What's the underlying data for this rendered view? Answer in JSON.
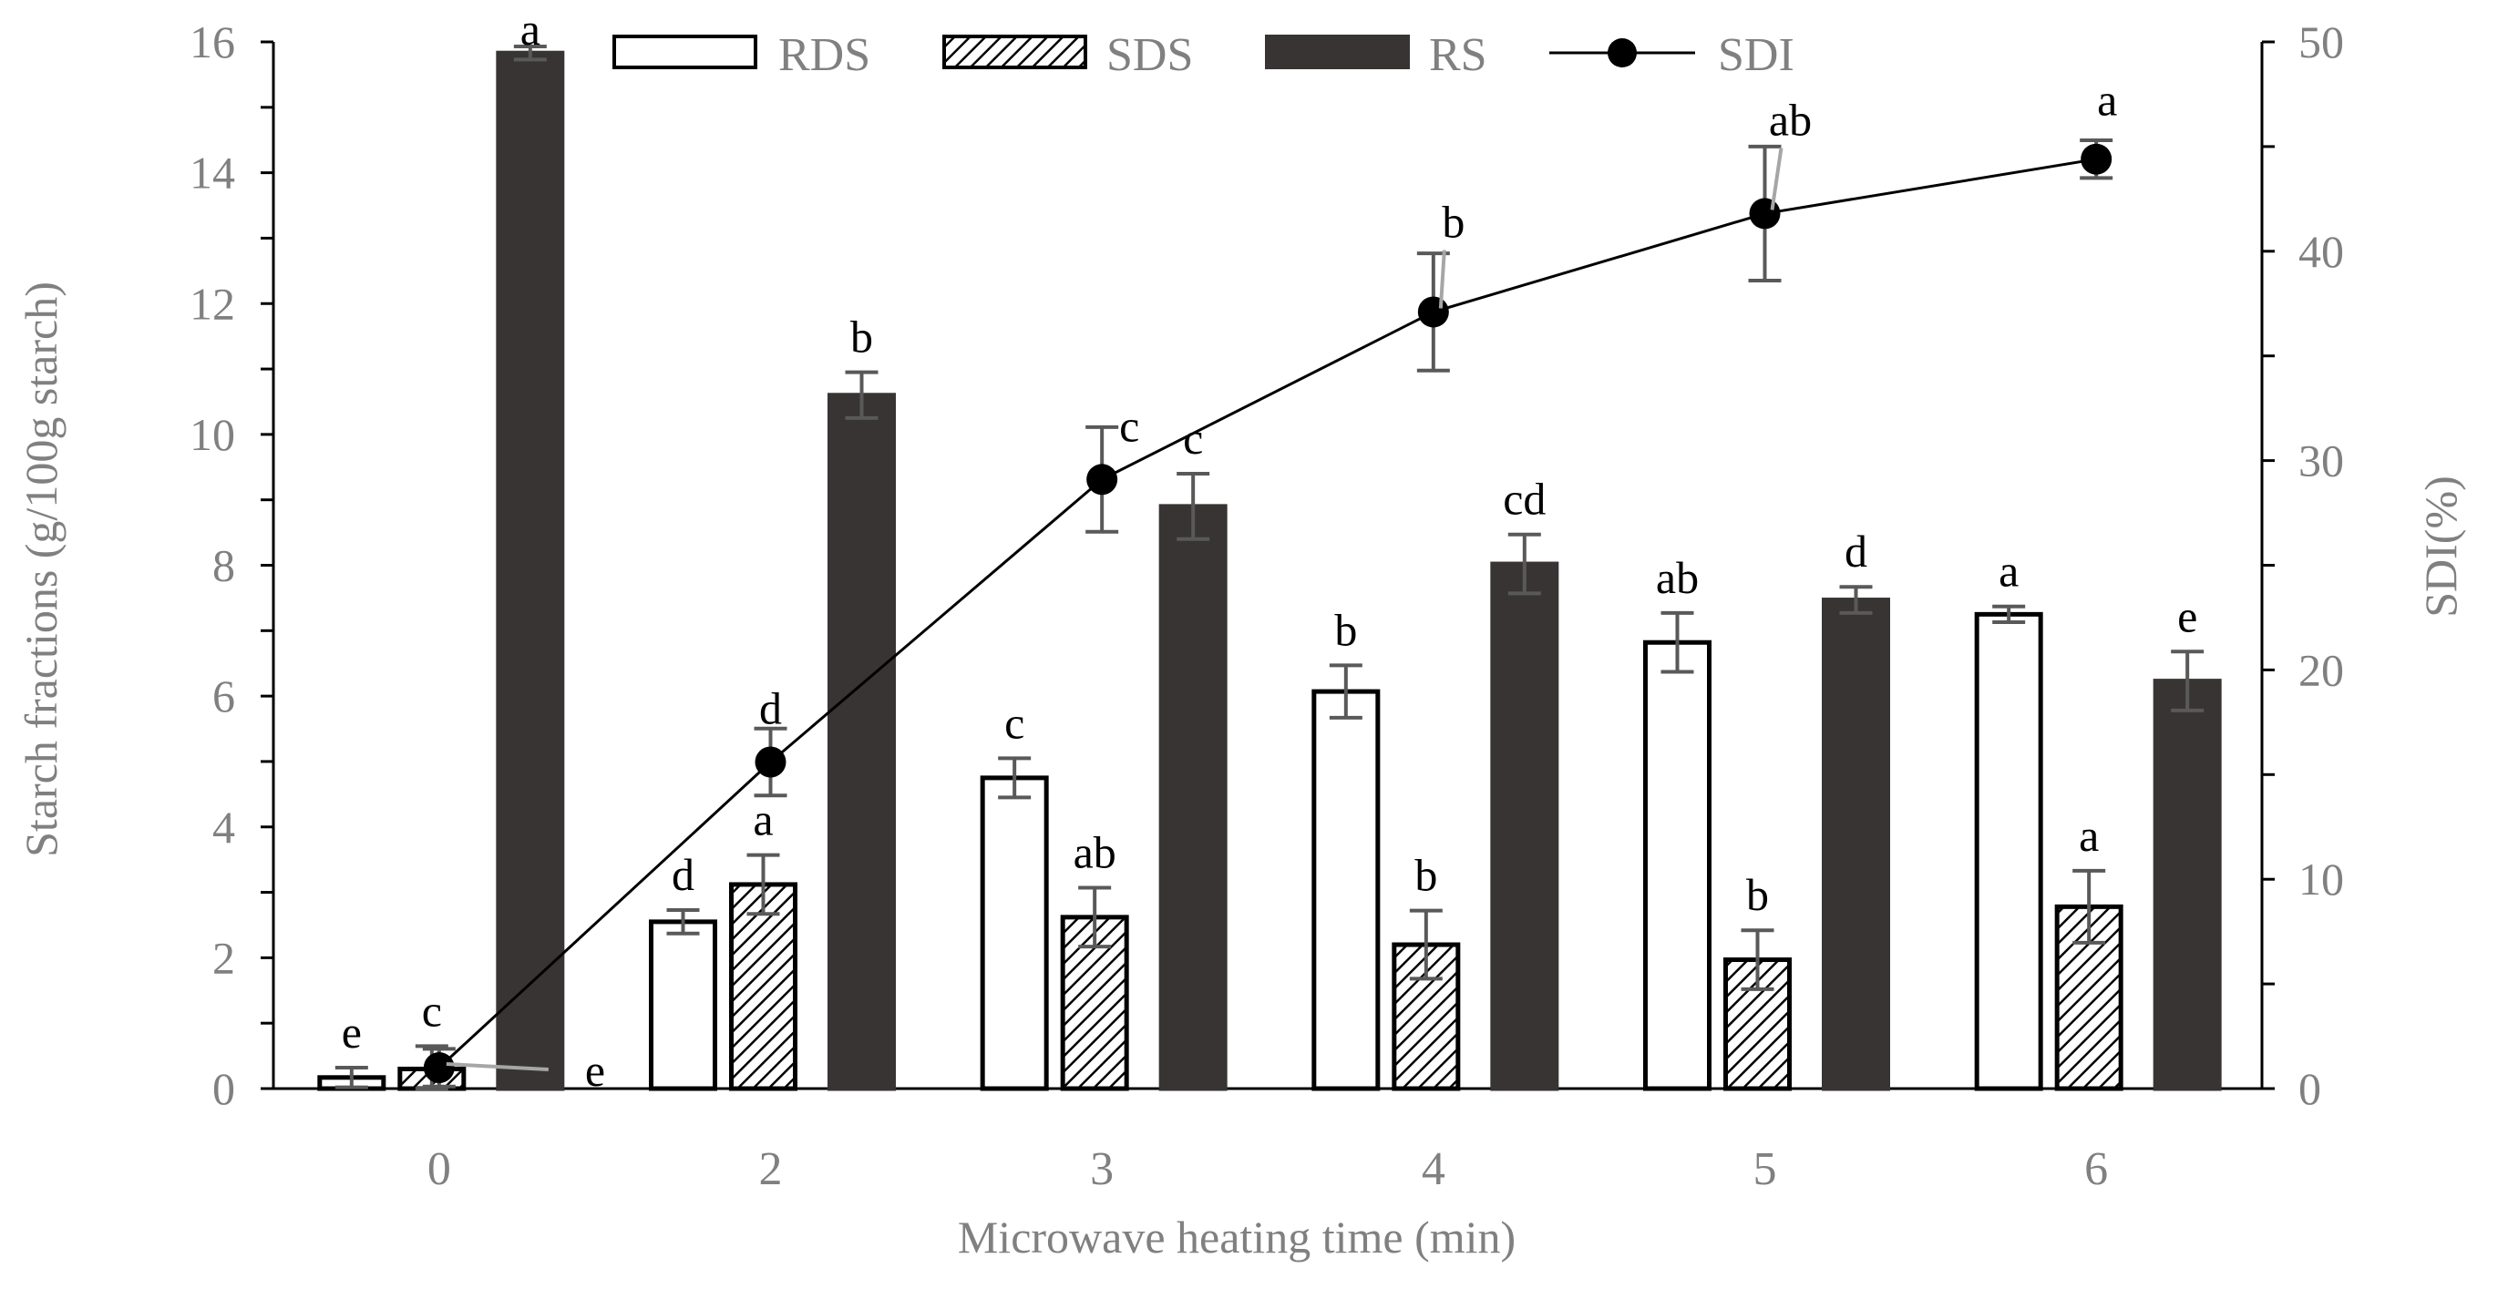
{
  "chart_data": {
    "type": "bar",
    "title": "",
    "xlabel": "Microwave heating time (min)",
    "ylabel": "Starch fractions (g/100g starch)",
    "y2label": "SDI(%)",
    "categories": [
      "0",
      "2",
      "3",
      "4",
      "5",
      "6"
    ],
    "ylim": [
      0,
      16
    ],
    "y2lim": [
      0,
      50
    ],
    "yticks": [
      "0",
      "2",
      "4",
      "6",
      "8",
      "10",
      "12",
      "14",
      "16"
    ],
    "y2ticks": [
      "0",
      "10",
      "20",
      "30",
      "40",
      "50"
    ],
    "legend_position": "top",
    "series": [
      {
        "name": "RDS",
        "kind": "bar",
        "pattern": "white",
        "values": [
          0.17,
          2.55,
          4.75,
          6.07,
          6.82,
          7.25
        ],
        "errors": [
          0.15,
          0.18,
          0.3,
          0.4,
          0.45,
          0.12
        ],
        "labels": [
          "e",
          "d",
          "c",
          "b",
          "ab",
          "a"
        ]
      },
      {
        "name": "SDS",
        "kind": "bar",
        "pattern": "hatched",
        "values": [
          0.3,
          3.12,
          2.62,
          2.2,
          1.97,
          2.78
        ],
        "errors": [
          0.35,
          0.45,
          0.45,
          0.52,
          0.45,
          0.55
        ],
        "labels": [
          "c",
          "a",
          "ab",
          "b",
          "b",
          "a"
        ]
      },
      {
        "name": "RS",
        "kind": "bar",
        "pattern": "dark",
        "values": [
          15.83,
          10.6,
          8.9,
          8.02,
          7.47,
          6.23
        ],
        "errors": [
          0.1,
          0.35,
          0.5,
          0.45,
          0.2,
          0.45
        ],
        "labels": [
          "a",
          "b",
          "c",
          "cd",
          "d",
          "e"
        ]
      },
      {
        "name": "SDI",
        "kind": "line",
        "axis": "right",
        "values": [
          1.0,
          15.6,
          29.1,
          37.1,
          41.8,
          44.4
        ],
        "errors": [
          0.9,
          1.6,
          2.5,
          2.8,
          3.2,
          0.9
        ],
        "labels": [
          "e",
          "d",
          "c",
          "b",
          "ab",
          "a"
        ]
      }
    ]
  },
  "colors": {
    "axis_text": "#808080",
    "axis_line": "#000000",
    "rs_fill": "#383434",
    "error_bar": "#595959",
    "bar_outline": "#000000"
  }
}
